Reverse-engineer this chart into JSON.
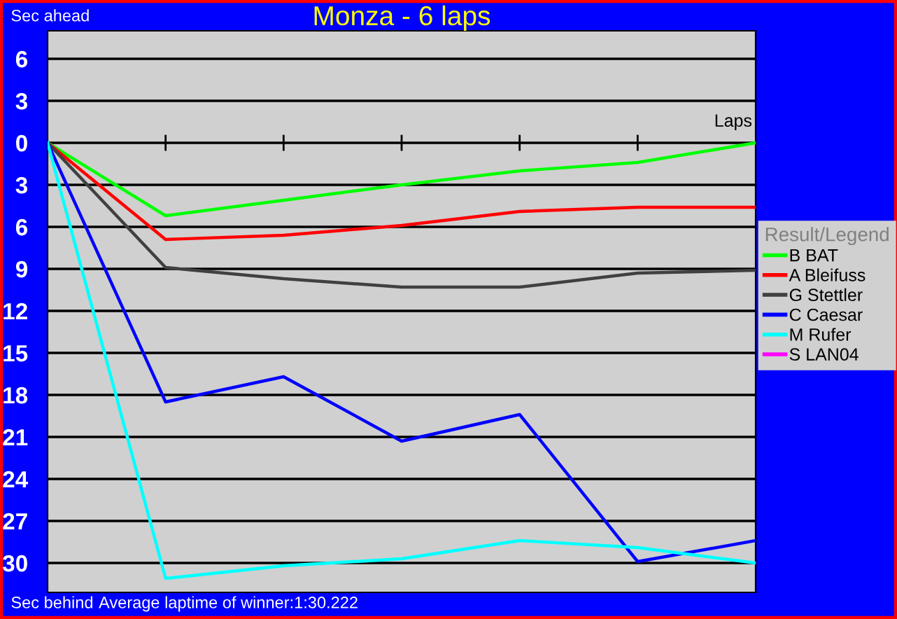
{
  "chart_data": {
    "type": "line",
    "title": "Monza - 6 laps",
    "xlabel": "Laps",
    "annotations": [
      "Sec ahead",
      "Sec behind",
      "Average laptime of winner:1:30.222"
    ],
    "categories": [
      null,
      null,
      null,
      null,
      null,
      null,
      null
    ],
    "series": [
      {
        "name": "B BAT",
        "color": "#00ff00",
        "values": [
          0,
          -5.2,
          -4.1,
          -3.0,
          -2.0,
          -1.4,
          0
        ]
      },
      {
        "name": "A Bleifuss",
        "color": "#ff0000",
        "values": [
          0,
          -6.9,
          -6.6,
          -5.9,
          -4.9,
          -4.6,
          -4.6
        ]
      },
      {
        "name": "G Stettler",
        "color": "#404040",
        "values": [
          0,
          -8.9,
          -9.7,
          -10.3,
          -10.3,
          -9.3,
          -9.1
        ]
      },
      {
        "name": "C Caesar",
        "color": "#0000ff",
        "values": [
          0,
          -18.5,
          -16.7,
          -21.3,
          -19.4,
          -29.9,
          -28.4
        ]
      },
      {
        "name": "M Rufer",
        "color": "#00ffff",
        "values": [
          0,
          -31.1,
          -30.2,
          -29.7,
          -28.4,
          -28.9,
          -30.0
        ]
      },
      {
        "name": "S LAN04",
        "color": "#ff00ff",
        "values": [
          null,
          null,
          null,
          null,
          null,
          null,
          null
        ]
      }
    ],
    "ylim": [
      -32.1,
      8
    ],
    "yticks": [
      {
        "value": 6,
        "label": "6"
      },
      {
        "value": 3,
        "label": "3"
      },
      0,
      {
        "value": -3,
        "label": "3"
      },
      {
        "value": -6,
        "label": "6"
      },
      {
        "value": -9,
        "label": "9"
      },
      {
        "value": -12,
        "label": "12"
      },
      {
        "value": -15,
        "label": "15"
      },
      {
        "value": -18,
        "label": "18"
      },
      {
        "value": -21,
        "label": "21"
      },
      {
        "value": -24,
        "label": "24"
      },
      {
        "value": -27,
        "label": "27"
      },
      {
        "value": -30,
        "label": "30"
      }
    ],
    "grid": "y",
    "legend": "right",
    "legend_title": "Result/Legend",
    "marker": "none",
    "line_style": "solid"
  }
}
